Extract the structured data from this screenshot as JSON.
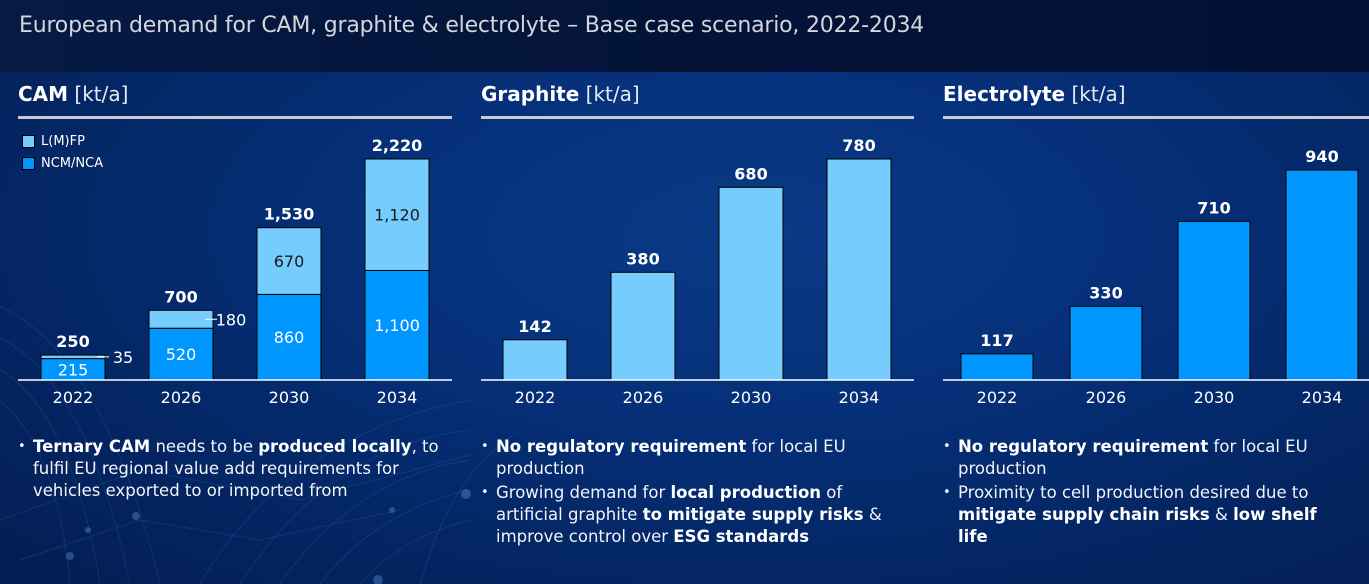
{
  "header": {
    "title": "European demand for CAM, graphite & electrolyte – Base case scenario, 2022-2034"
  },
  "colors": {
    "light_blue": "#76ccfd",
    "bright_blue": "#0096ff",
    "text_dark": "#1a1a1a",
    "axis_white": "#ffffff"
  },
  "panels": {
    "cam": {
      "title_bold": "CAM",
      "title_unit": "[kt/a]",
      "legend": [
        {
          "label": "L(M)FP",
          "color": "#76ccfd"
        },
        {
          "label": "NCM/NCA",
          "color": "#0096ff"
        }
      ],
      "bullets": [
        {
          "segments": [
            {
              "text": "Ternary CAM",
              "bold": true
            },
            {
              "text": " needs to be ",
              "bold": false
            },
            {
              "text": "produced locally",
              "bold": true
            },
            {
              "text": ", to fulfil EU regional value add requirements for vehicles exported to or imported from",
              "bold": false
            }
          ]
        }
      ]
    },
    "graphite": {
      "title_bold": "Graphite",
      "title_unit": "[kt/a]",
      "bullets": [
        {
          "segments": [
            {
              "text": "No regulatory requirement",
              "bold": true
            },
            {
              "text": " for local EU production",
              "bold": false
            }
          ]
        },
        {
          "segments": [
            {
              "text": "Growing demand for ",
              "bold": false
            },
            {
              "text": "local production",
              "bold": true
            },
            {
              "text": " of artificial graphite ",
              "bold": false
            },
            {
              "text": "to mitigate supply risks",
              "bold": true
            },
            {
              "text": " & improve control over ",
              "bold": false
            },
            {
              "text": "ESG standards",
              "bold": true
            }
          ]
        }
      ]
    },
    "electrolyte": {
      "title_bold": "Electrolyte",
      "title_unit": "[kt/a]",
      "bullets": [
        {
          "segments": [
            {
              "text": "No regulatory requirement",
              "bold": true
            },
            {
              "text": " for local EU production",
              "bold": false
            }
          ]
        },
        {
          "segments": [
            {
              "text": "Proximity to cell production desired due to ",
              "bold": false
            },
            {
              "text": "mitigate supply chain risks",
              "bold": true
            },
            {
              "text": " & ",
              "bold": false
            },
            {
              "text": "low shelf life",
              "bold": true
            }
          ]
        }
      ]
    }
  },
  "chart_data": [
    {
      "type": "bar",
      "stacked": true,
      "title": "CAM [kt/a]",
      "xlabel": "",
      "ylabel": "kt/a",
      "categories": [
        "2022",
        "2026",
        "2030",
        "2034"
      ],
      "series": [
        {
          "name": "NCM/NCA",
          "values": [
            215,
            520,
            860,
            1100
          ],
          "labels": [
            "215",
            "520",
            "860",
            "1,100"
          ],
          "color": "#0096ff",
          "label_color": "#ffffff"
        },
        {
          "name": "L(M)FP",
          "values": [
            35,
            180,
            670,
            1120
          ],
          "labels": [
            "35",
            "180",
            "670",
            "1,120"
          ],
          "color": "#76ccfd",
          "label_color": "#1a1a1a"
        }
      ],
      "totals": [
        250,
        700,
        1530,
        2220
      ],
      "total_labels": [
        "250",
        "700",
        "1,530",
        "2,220"
      ],
      "ylim": [
        0,
        2220
      ],
      "grid": false,
      "legend": "top-left"
    },
    {
      "type": "bar",
      "title": "Graphite [kt/a]",
      "xlabel": "",
      "ylabel": "kt/a",
      "categories": [
        "2022",
        "2026",
        "2030",
        "2034"
      ],
      "values": [
        142,
        380,
        680,
        780
      ],
      "value_labels": [
        "142",
        "380",
        "680",
        "780"
      ],
      "color": "#76ccfd",
      "ylim": [
        0,
        780
      ],
      "grid": false
    },
    {
      "type": "bar",
      "title": "Electrolyte [kt/a]",
      "xlabel": "",
      "ylabel": "kt/a",
      "categories": [
        "2022",
        "2026",
        "2030",
        "2034"
      ],
      "values": [
        117,
        330,
        710,
        940
      ],
      "value_labels": [
        "117",
        "330",
        "710",
        "940"
      ],
      "color": "#0096ff",
      "ylim": [
        0,
        940
      ],
      "grid": false
    }
  ]
}
